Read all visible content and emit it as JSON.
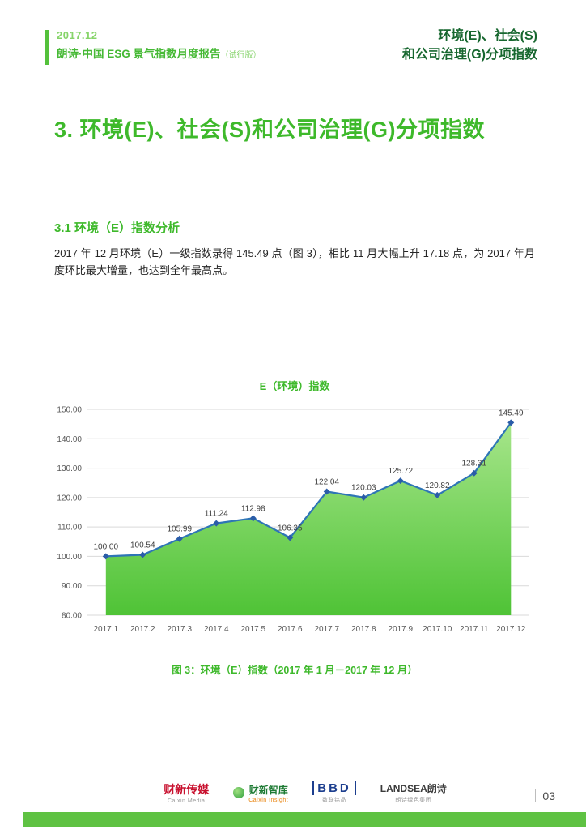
{
  "colors": {
    "accent_green": "#3eb92b",
    "bar_green": "#5fc243",
    "dark_green_header": "#17672f",
    "line_blue": "#2e75b6",
    "caixin_red": "#c8102e",
    "bbd_navy": "#1c3e8e"
  },
  "header": {
    "date": "2017.12",
    "report_title": "朗诗·中国 ESG 景气指数月度报告",
    "report_title_suffix": "（试行版）",
    "right_line1": "环境(E)、社会(S)",
    "right_line2": "和公司治理(G)分项指数"
  },
  "main": {
    "title": "3. 环境(E)、社会(S)和公司治理(G)分项指数",
    "section_heading": "3.1 环境（E）指数分析",
    "paragraph": "2017 年 12 月环境（E）一级指数录得 145.49 点（图 3），相比 11 月大幅上升 17.18 点，为 2017 年月度环比最大增量，也达到全年最高点。",
    "figure_caption": "图 3：环境（E）指数（2017 年 1 月－2017 年 12 月）"
  },
  "chart_data": {
    "type": "area",
    "title": "E（环境）指数",
    "categories": [
      "2017.1",
      "2017.2",
      "2017.3",
      "2017.4",
      "2017.5",
      "2017.6",
      "2017.7",
      "2017.8",
      "2017.9",
      "2017.10",
      "2017.11",
      "2017.12"
    ],
    "values": [
      100.0,
      100.54,
      105.99,
      111.24,
      112.98,
      106.35,
      122.04,
      120.03,
      125.72,
      120.82,
      128.31,
      145.49
    ],
    "ylim": [
      80,
      150
    ],
    "ytick_step": 10,
    "grid": true,
    "legend": "none",
    "line_color": "#2e75b6",
    "marker": "diamond",
    "marker_color": "#2a5ca8",
    "area_gradient": [
      "#a6e58a",
      "#4fc336"
    ],
    "grid_color": "#d9d9d9",
    "label_color": "#595959",
    "value_label_color": "#404040"
  },
  "footer": {
    "logos": [
      {
        "text": "财新传媒",
        "subtext": "Caixin Media"
      },
      {
        "text": "财新智库",
        "subtext": "Caixin Insight"
      },
      {
        "text": "BBD",
        "subtext": "数联铭品"
      },
      {
        "text": "LANDSEA朗诗",
        "subtext": "朗诗绿色集团"
      }
    ],
    "page_number": "03"
  }
}
